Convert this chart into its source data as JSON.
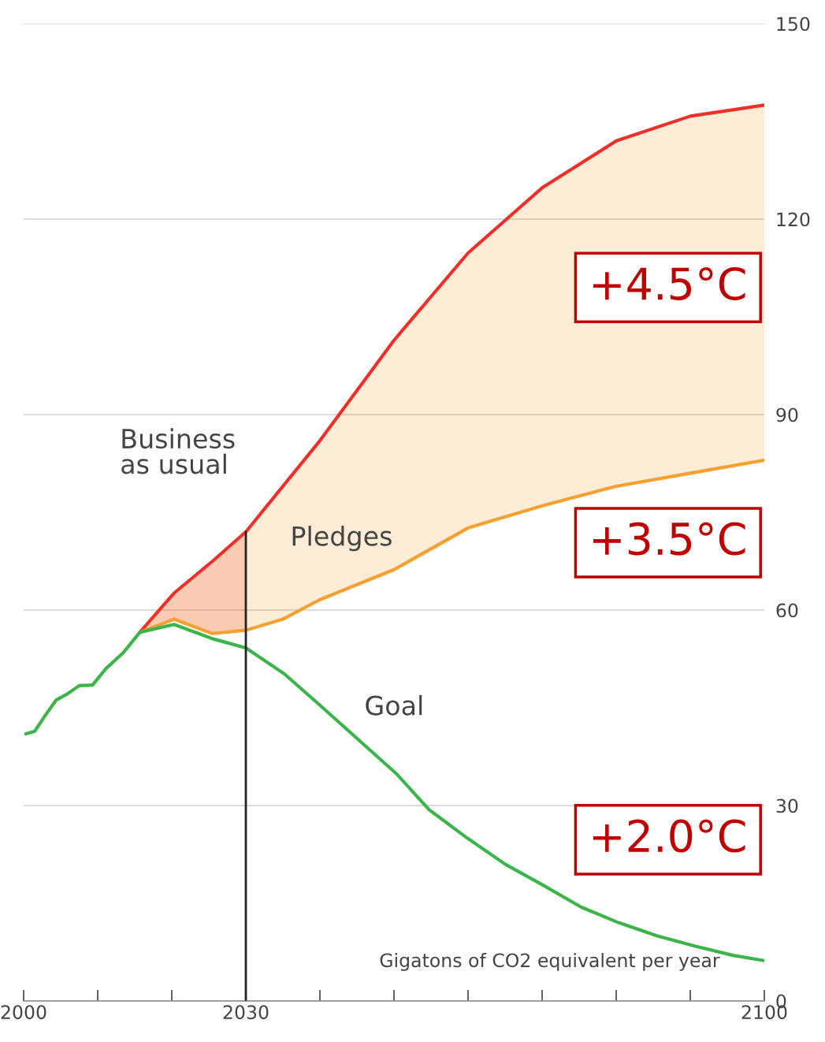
{
  "chart_data": {
    "type": "line",
    "ylabel": "Gigatons of CO2 equivalent per year",
    "series": [
      {
        "name": "Business\nas usual",
        "color": "#f03028",
        "x": [
          2015.7,
          2020.3,
          2025.5,
          2030,
          2035,
          2040,
          2050,
          2060,
          2070,
          2080,
          2090,
          2100
        ],
        "values": [
          56.6,
          62.6,
          67.5,
          72,
          79,
          86,
          101.4,
          114.8,
          124.8,
          132,
          135.8,
          137.5
        ],
        "lower": [
          56.6,
          58.6,
          56.4,
          56.9,
          null,
          null,
          null,
          null,
          null,
          null,
          null,
          null
        ],
        "upper": [
          56.6,
          62.6,
          67.5,
          72,
          null,
          null,
          null,
          null,
          null,
          null,
          null,
          null
        ]
      },
      {
        "name": "Pledges",
        "color": "#f5a030",
        "x": [
          2015.7,
          2020.3,
          2025.5,
          2030,
          2035,
          2040,
          2050,
          2060,
          2070,
          2080,
          2090,
          2100
        ],
        "values": [
          56.6,
          58.6,
          56.4,
          56.9,
          58.6,
          61.6,
          66.2,
          72.6,
          76,
          79,
          81,
          83
        ],
        "lower": [
          56.6,
          58.6,
          56.4,
          56.9,
          58.6,
          61.6,
          66.2,
          72.6,
          76,
          79,
          81,
          83
        ],
        "upper": [
          56.6,
          62.6,
          67.5,
          72,
          79,
          86,
          101.4,
          114.8,
          124.8,
          132,
          135.8,
          137.5
        ]
      },
      {
        "name": "Goal",
        "color": "#3cb44a",
        "x": [
          2000.3,
          2001.5,
          2002.9,
          2004.4,
          2006,
          2007.5,
          2009.3,
          2011.1,
          2013.4,
          2015.7,
          2020.3,
          2025.5,
          2030,
          2035.2,
          2039.8,
          2045.5,
          2050.4,
          2054.7,
          2059.9,
          2065,
          2070.1,
          2075.3,
          2080.4,
          2085.5,
          2090.7,
          2095.8,
          2100
        ],
        "values": [
          41,
          41.4,
          43.8,
          46.2,
          47.2,
          48.4,
          48.5,
          51,
          53.4,
          56.6,
          57.8,
          55.6,
          54.2,
          50.2,
          45.6,
          39.8,
          34.8,
          29.4,
          25,
          21,
          17.8,
          14.4,
          12,
          10,
          8.4,
          7,
          6.2
        ]
      }
    ],
    "xlim": [
      2000,
      2100
    ],
    "xticks": [
      2000,
      {
        "value": 2010,
        "label": null
      },
      {
        "value": 2020,
        "label": null
      },
      2030,
      {
        "value": 2040,
        "label": null
      },
      {
        "value": 2050,
        "label": null
      },
      {
        "value": 2060,
        "label": null
      },
      {
        "value": 2070,
        "label": null
      },
      {
        "value": 2080,
        "label": null
      },
      {
        "value": 2090,
        "label": null
      },
      2100
    ],
    "ylim": [
      0,
      150
    ],
    "yticks": [
      0,
      30,
      60,
      90,
      120,
      150
    ],
    "grid": "y",
    "legend": false,
    "ref_lines": [
      {
        "axis": "x",
        "value": 2030,
        "color": "#222222"
      }
    ],
    "annotations": [
      "+4.5°C",
      "+3.5°C",
      "+2.0°C"
    ]
  }
}
